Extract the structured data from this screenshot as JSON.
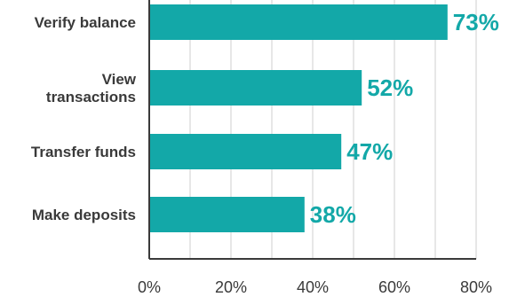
{
  "chart_data": {
    "type": "bar",
    "orientation": "horizontal",
    "categories": [
      [
        "Verify balance"
      ],
      [
        "View",
        "transactions"
      ],
      [
        "Transfer funds"
      ],
      [
        "Make deposits"
      ]
    ],
    "values": [
      73,
      52,
      47,
      38
    ],
    "data_labels": [
      "73%",
      "52%",
      "47%",
      "38%"
    ],
    "x_ticks": [
      "0%",
      "20%",
      "40%",
      "60%",
      "80%"
    ],
    "xlim": [
      0,
      80
    ],
    "grid": "vertical",
    "colors": {
      "bar": "#13a8a8",
      "label": "#13a8a8",
      "text": "#3a3a3a",
      "grid": "#cfcfcf",
      "axis": "#3a3a3a"
    }
  }
}
